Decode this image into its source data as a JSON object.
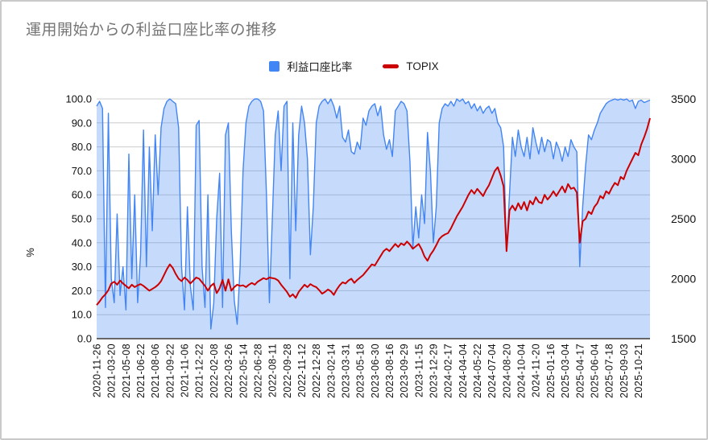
{
  "title": "運用開始からの利益口座比率の推移",
  "legend": [
    {
      "label": "利益口座比率",
      "color": "#4285f4",
      "marker": "square"
    },
    {
      "label": "TOPIX",
      "color": "#cc0000",
      "marker": "line"
    }
  ],
  "chart_data": {
    "type": "line",
    "title": "運用開始からの利益口座比率の推移",
    "xlabel": "",
    "grid": true,
    "legend_position": "top",
    "left_axis": {
      "label": "%",
      "range": [
        0,
        100
      ],
      "ticks": [
        "100.0",
        "90.0",
        "80.0",
        "70.0",
        "60.0",
        "50.0",
        "40.0",
        "30.0",
        "20.0",
        "10.0",
        "0.0"
      ]
    },
    "right_axis": {
      "range": [
        1500,
        3500
      ],
      "ticks": [
        "3500",
        "3000",
        "2500",
        "2000",
        "1500"
      ]
    },
    "categories": [
      "2020-11-26",
      "2021-03-20",
      "2021-05-08",
      "2021-06-22",
      "2021-08-06",
      "2021-09-22",
      "2021-11-06",
      "2021-12-22",
      "2022-02-08",
      "2022-03-26",
      "2022-05-14",
      "2022-06-28",
      "2022-08-11",
      "2022-09-28",
      "2022-11-12",
      "2022-12-28",
      "2023-02-14",
      "2023-03-31",
      "2023-05-18",
      "2023-06-30",
      "2023-08-16",
      "2023-09-29",
      "2023-11-15",
      "2023-12-29",
      "2024-02-17",
      "2024-04-04",
      "2024-05-22",
      "2024-07-04",
      "2024-08-20",
      "2024-10-04",
      "2024-11-20",
      "2025-01-16",
      "2025-03-04",
      "2025-04-17",
      "2025-06-04",
      "2025-07-18",
      "2025-09-03",
      "2025-10-21"
    ],
    "points_per_category": 5,
    "series": [
      {
        "name": "利益口座比率",
        "axis": "left",
        "style": "area",
        "color": "#4285f4",
        "fill": "rgba(66,133,244,0.3)",
        "values": [
          97,
          99,
          96,
          13,
          94,
          25,
          15,
          52,
          18,
          30,
          12,
          77,
          25,
          60,
          15,
          35,
          87,
          30,
          80,
          45,
          85,
          60,
          88,
          96,
          99,
          100,
          99,
          98,
          88,
          30,
          12,
          55,
          22,
          12,
          89,
          91,
          30,
          13,
          60,
          4,
          15,
          50,
          69,
          13,
          85,
          90,
          45,
          16,
          6,
          30,
          70,
          90,
          97,
          99,
          100,
          100,
          99,
          95,
          60,
          15,
          50,
          85,
          95,
          70,
          97,
          99,
          25,
          90,
          45,
          85,
          97,
          90,
          75,
          35,
          55,
          90,
          97,
          99,
          100,
          98,
          100,
          97,
          92,
          97,
          84,
          82,
          87,
          78,
          77,
          82,
          79,
          92,
          89,
          95,
          97,
          98,
          93,
          97,
          85,
          79,
          83,
          76,
          95,
          97,
          99,
          98,
          95,
          74,
          38,
          55,
          42,
          60,
          48,
          86,
          70,
          40,
          55,
          90,
          96,
          98,
          97,
          99,
          97,
          100,
          99,
          100,
          98,
          99,
          96,
          98,
          95,
          97,
          94,
          96,
          97,
          94,
          96,
          90,
          88,
          80,
          37,
          60,
          84,
          76,
          87,
          80,
          76,
          84,
          75,
          88,
          82,
          77,
          84,
          78,
          83,
          82,
          75,
          82,
          79,
          74,
          80,
          76,
          83,
          80,
          78,
          30,
          55,
          72,
          85,
          83,
          87,
          90,
          94,
          96,
          98,
          99,
          99.5,
          100,
          99.5,
          100,
          99.5,
          100,
          99,
          99.5,
          96,
          99,
          99.5,
          98.5,
          99,
          99.5
        ]
      },
      {
        "name": "TOPIX",
        "axis": "right",
        "style": "line",
        "color": "#cc0000",
        "values": [
          1780,
          1810,
          1845,
          1870,
          1905,
          1960,
          1975,
          1950,
          1985,
          1960,
          1940,
          1920,
          1950,
          1930,
          1945,
          1955,
          1940,
          1920,
          1900,
          1915,
          1930,
          1950,
          1980,
          2030,
          2080,
          2120,
          2090,
          2040,
          2000,
          1980,
          2010,
          1990,
          1960,
          1985,
          2010,
          2000,
          1970,
          1940,
          1900,
          1940,
          1960,
          1880,
          1920,
          1990,
          1900,
          1995,
          1900,
          1930,
          1950,
          1940,
          1945,
          1930,
          1950,
          1965,
          1950,
          1975,
          1990,
          2005,
          1995,
          2010,
          2005,
          2000,
          1985,
          1950,
          1920,
          1890,
          1850,
          1870,
          1840,
          1890,
          1920,
          1950,
          1930,
          1955,
          1940,
          1930,
          1905,
          1875,
          1890,
          1910,
          1895,
          1865,
          1910,
          1945,
          1970,
          1960,
          1985,
          2000,
          1965,
          1990,
          2010,
          2030,
          2060,
          2090,
          2120,
          2110,
          2150,
          2190,
          2230,
          2250,
          2230,
          2260,
          2290,
          2265,
          2295,
          2280,
          2310,
          2285,
          2250,
          2270,
          2290,
          2245,
          2185,
          2150,
          2200,
          2235,
          2280,
          2330,
          2355,
          2370,
          2380,
          2420,
          2470,
          2520,
          2560,
          2600,
          2650,
          2700,
          2740,
          2710,
          2750,
          2720,
          2690,
          2740,
          2780,
          2840,
          2900,
          2930,
          2860,
          2770,
          2230,
          2570,
          2610,
          2570,
          2630,
          2580,
          2640,
          2570,
          2650,
          2620,
          2680,
          2640,
          2630,
          2700,
          2660,
          2690,
          2730,
          2690,
          2730,
          2770,
          2720,
          2790,
          2750,
          2760,
          2720,
          2300,
          2480,
          2500,
          2560,
          2540,
          2600,
          2630,
          2690,
          2670,
          2730,
          2710,
          2760,
          2800,
          2780,
          2850,
          2830,
          2900,
          2950,
          3000,
          3050,
          3030,
          3120,
          3180,
          3250,
          3340
        ]
      }
    ]
  }
}
